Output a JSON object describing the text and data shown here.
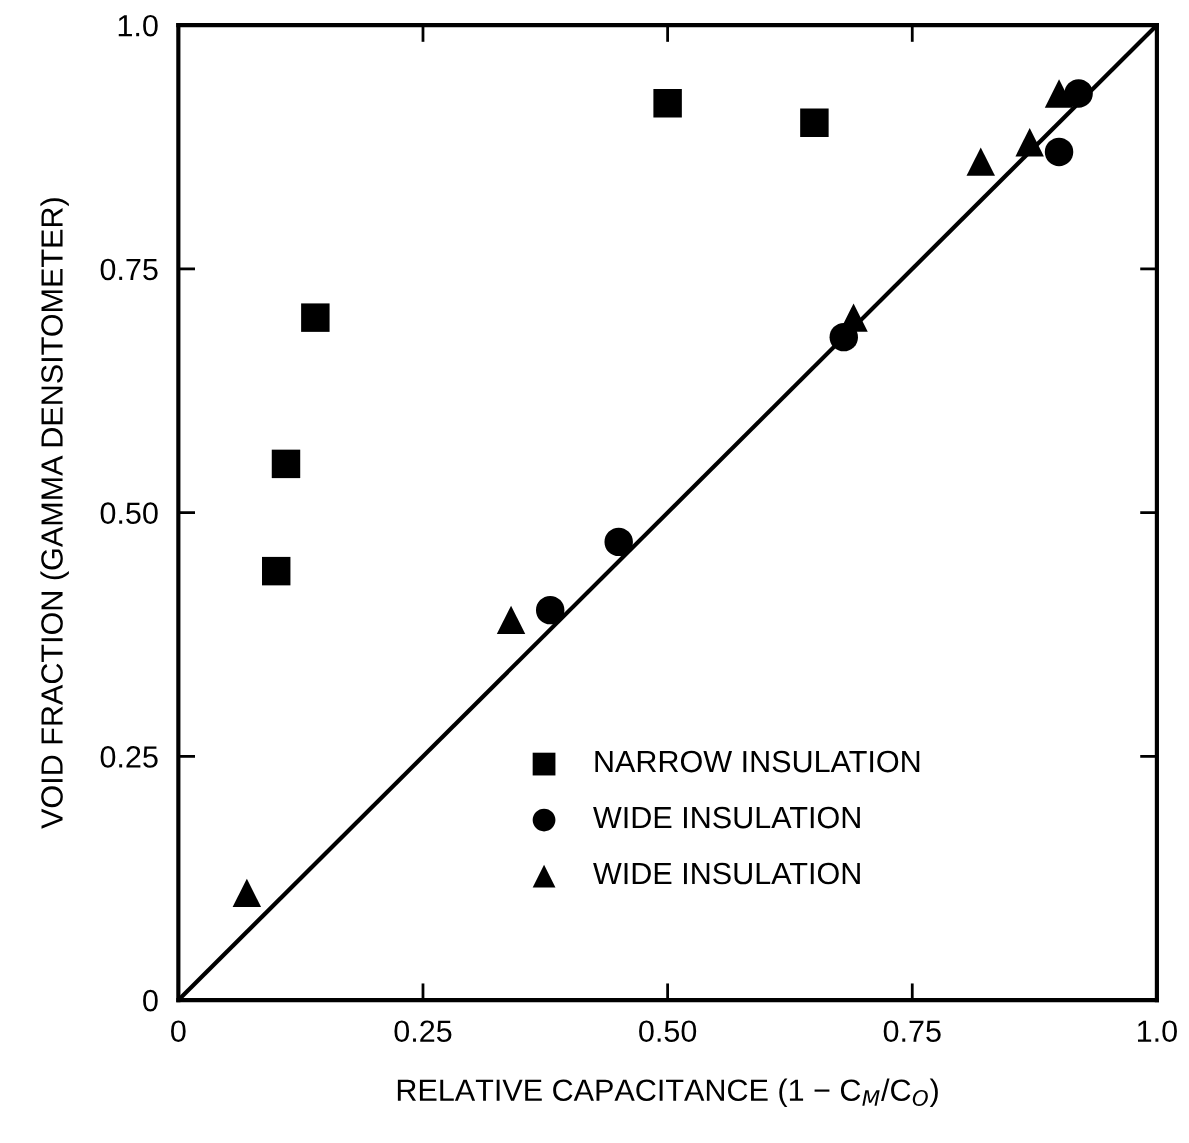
{
  "chart_data": {
    "type": "scatter",
    "xlabel": "RELATIVE CAPACITANCE (1 − C$_{M}$/C$_{O}$)",
    "ylabel": "VOID FRACTION (GAMMA DENSITOMETER)",
    "xlim": [
      0,
      1
    ],
    "ylim": [
      0,
      1
    ],
    "xticks": [
      0,
      0.25,
      {
        "value": 0.5,
        "label": "0.50"
      },
      0.75,
      {
        "value": 1,
        "label": "1.0"
      }
    ],
    "yticks": [
      0,
      0.25,
      {
        "value": 0.5,
        "label": "0.50"
      },
      0.75,
      {
        "value": 1,
        "label": "1.0"
      }
    ],
    "grid": false,
    "legend": "bottom right",
    "series": [
      {
        "name": "NARROW INSULATION",
        "color": "#000000",
        "marker": "square",
        "x": [
          0.1,
          0.11,
          0.14,
          0.5,
          0.65
        ],
        "values": [
          0.44,
          0.55,
          0.7,
          0.92,
          0.9
        ]
      },
      {
        "name": "WIDE INSULATION",
        "color": "#000000",
        "marker": "circle",
        "x": [
          0.38,
          0.45,
          0.68,
          0.9,
          0.92
        ],
        "values": [
          0.4,
          0.47,
          0.68,
          0.87,
          0.93
        ]
      },
      {
        "name": "WIDE INSULATION",
        "color": "#000000",
        "marker": "triangle",
        "x": [
          0.07,
          0.34,
          0.69,
          0.82,
          0.87,
          0.9
        ],
        "values": [
          0.11,
          0.39,
          0.7,
          0.86,
          0.88,
          0.93
        ]
      },
      {
        "type": "line",
        "color": "#000000",
        "marker": "none",
        "line_style": "solid",
        "x": [
          0,
          1
        ],
        "values": [
          0,
          1
        ]
      }
    ]
  }
}
